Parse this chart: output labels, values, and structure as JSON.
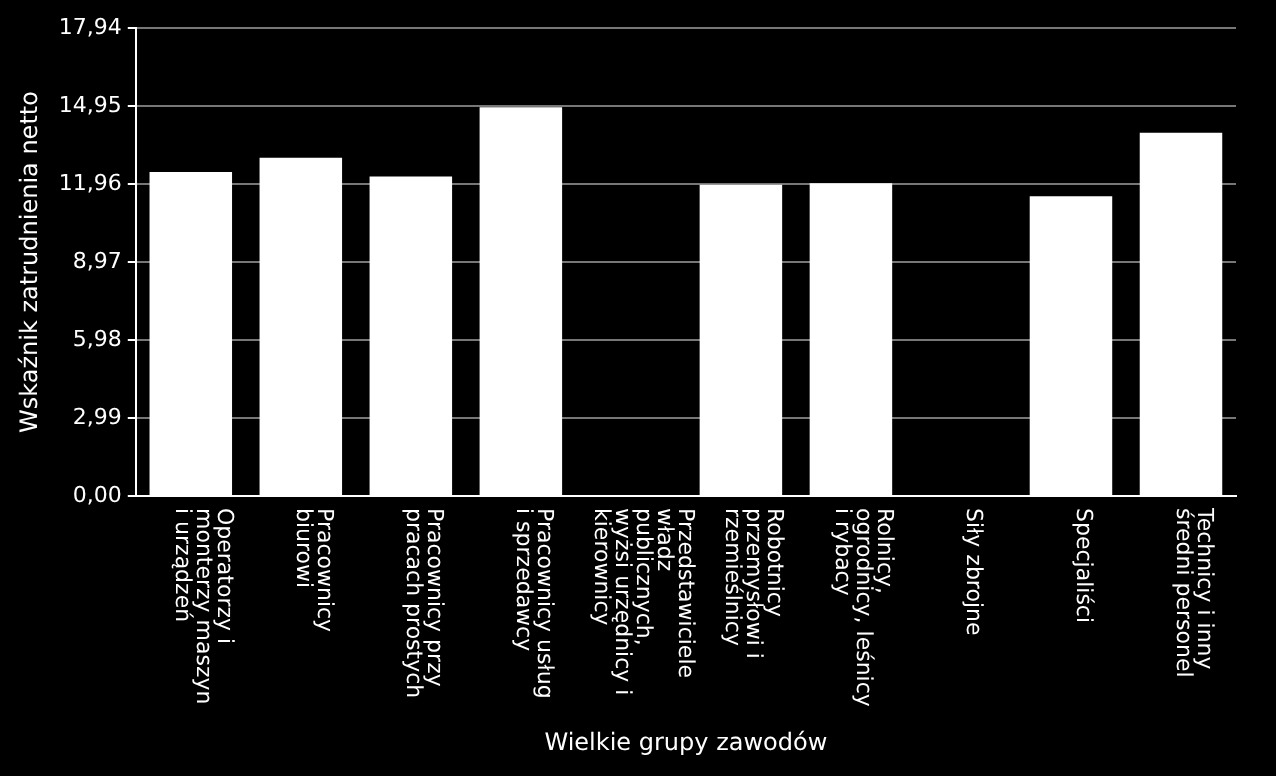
{
  "chart_data": {
    "type": "bar",
    "xlabel": "Wielkie grupy zawodów",
    "ylabel": "Wskaźnik zatrudnienia netto",
    "categories": [
      "Operatorzy i monterzy maszyn i urządzeń",
      "Pracownicy biurowi",
      "Pracownicy przy pracach prostych",
      "Pracownicy usług i sprzedawcy",
      "Przedstawiciele władz publicznych, wyżsi urzędnicy i kierownicy",
      "Robotnicy przemysłowi i rzemieślnicy",
      "Rolnicy, ogrodnicy, leśnicy i rybacy",
      "Siły zbrojne",
      "Specjaliści",
      "Technicy i inny średni personel"
    ],
    "values": [
      12.42,
      12.97,
      12.25,
      14.9,
      null,
      11.93,
      11.99,
      null,
      11.49,
      13.92
    ],
    "color": "#ffffff",
    "ylim": [
      0,
      17.94
    ],
    "yticks": [
      {
        "value": 0,
        "label": "0,00"
      },
      {
        "value": 2.99,
        "label": "2,99"
      },
      {
        "value": 5.98,
        "label": "5,98"
      },
      {
        "value": 8.97,
        "label": "8,97"
      },
      {
        "value": 11.96,
        "label": "11,96"
      },
      {
        "value": 14.95,
        "label": "14,95"
      },
      {
        "value": 17.94,
        "label": "17,94"
      }
    ],
    "grid": "y",
    "legend": false
  }
}
